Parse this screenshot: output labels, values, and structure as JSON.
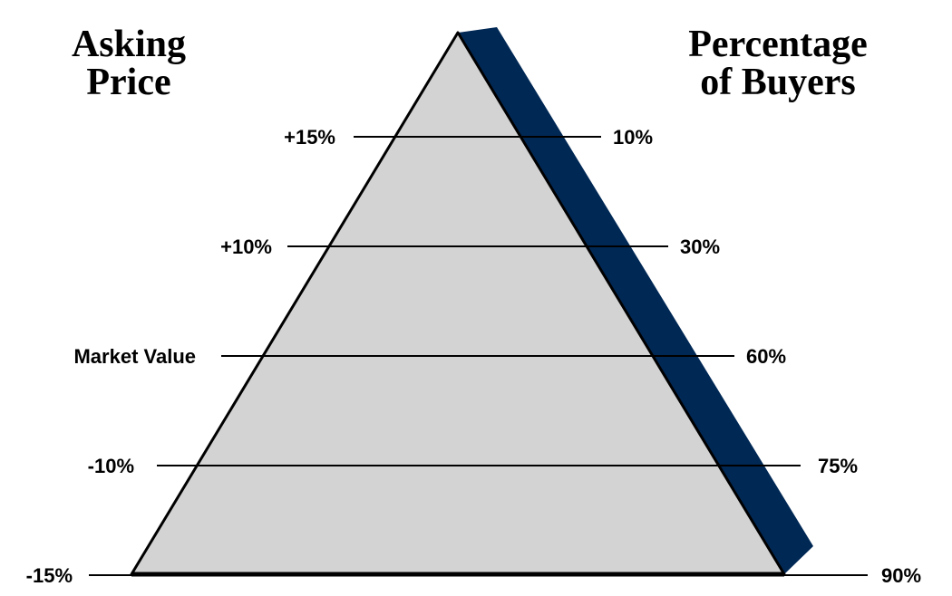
{
  "headings": {
    "left": [
      "Asking",
      "Price"
    ],
    "right": [
      "Percentage",
      "of Buyers"
    ]
  },
  "levels": [
    {
      "price": "+15%",
      "buyers": "10%"
    },
    {
      "price": "+10%",
      "buyers": "30%"
    },
    {
      "price": "Market Value",
      "buyers": "60%"
    },
    {
      "price": "-10%",
      "buyers": "75%"
    },
    {
      "price": "-15%",
      "buyers": "90%"
    }
  ],
  "colors": {
    "pyramid_fill": "#d3d3d3",
    "pyramid_side": "#002855",
    "lines": "#000000",
    "text": "#000000"
  }
}
